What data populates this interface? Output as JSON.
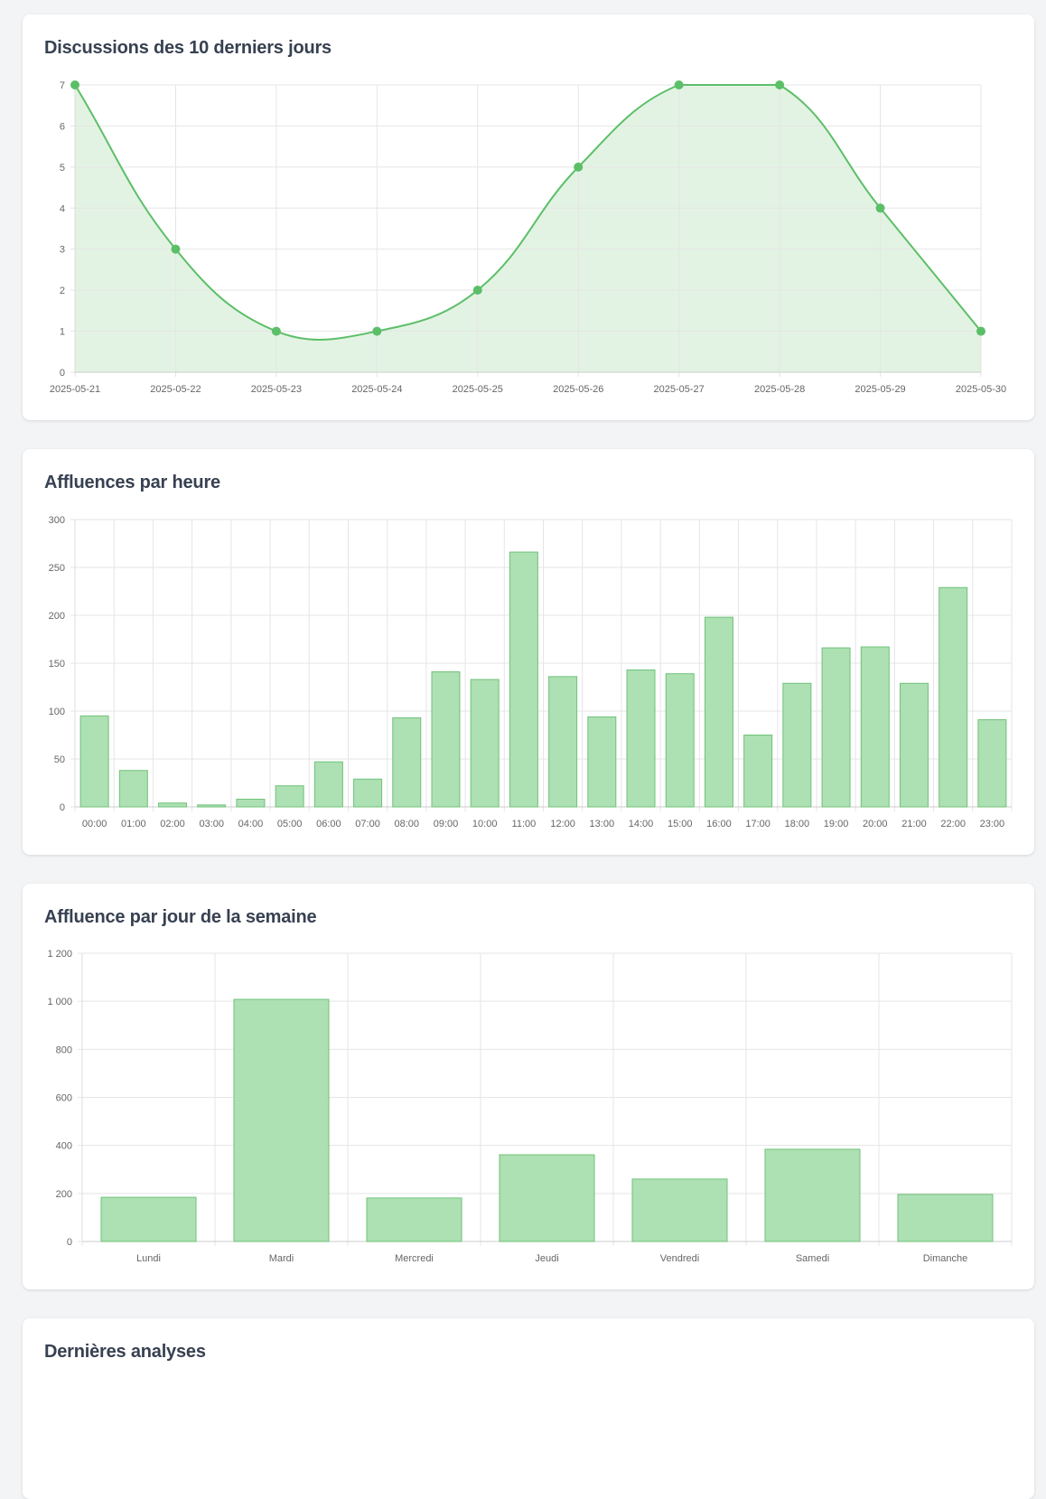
{
  "chart_data": [
    {
      "type": "line",
      "title": "Discussions des 10 derniers jours",
      "categories": [
        "2025-05-21",
        "2025-05-22",
        "2025-05-23",
        "2025-05-24",
        "2025-05-25",
        "2025-05-26",
        "2025-05-27",
        "2025-05-28",
        "2025-05-29",
        "2025-05-30"
      ],
      "values": [
        7,
        3,
        1,
        1,
        2,
        5,
        7,
        7,
        4,
        1
      ],
      "ylim": [
        0,
        7
      ],
      "yticks": [
        "0",
        "1",
        "2",
        "3",
        "4",
        "5",
        "6",
        "7"
      ],
      "fill": true,
      "grid": true,
      "color": "#5cbf68",
      "fill_color": "#e0f2e0"
    },
    {
      "type": "bar",
      "title": "Affluences par heure",
      "categories": [
        "00:00",
        "01:00",
        "02:00",
        "03:00",
        "04:00",
        "05:00",
        "06:00",
        "07:00",
        "08:00",
        "09:00",
        "10:00",
        "11:00",
        "12:00",
        "13:00",
        "14:00",
        "15:00",
        "16:00",
        "17:00",
        "18:00",
        "19:00",
        "20:00",
        "21:00",
        "22:00",
        "23:00"
      ],
      "values": [
        95,
        38,
        4,
        2,
        8,
        22,
        47,
        29,
        93,
        141,
        133,
        266,
        136,
        94,
        143,
        139,
        198,
        75,
        129,
        166,
        167,
        129,
        229,
        91
      ],
      "ylim": [
        0,
        300
      ],
      "yticks": [
        "0",
        "50",
        "100",
        "150",
        "200",
        "250",
        "300"
      ],
      "grid": true,
      "color": "#ade0b2",
      "border_color": "#6fc27a"
    },
    {
      "type": "bar",
      "title": "Affluence par jour de la semaine",
      "categories": [
        "Lundi",
        "Mardi",
        "Mercredi",
        "Jeudi",
        "Vendredi",
        "Samedi",
        "Dimanche"
      ],
      "values": [
        184,
        1008,
        181,
        361,
        260,
        384,
        196
      ],
      "ylim": [
        0,
        1200
      ],
      "yticks": [
        "0",
        "200",
        "400",
        "600",
        "800",
        "1 000",
        "1 200"
      ],
      "grid": true,
      "color": "#ade0b2",
      "border_color": "#6fc27a"
    }
  ],
  "last_section": {
    "title": "Dernières analyses"
  }
}
